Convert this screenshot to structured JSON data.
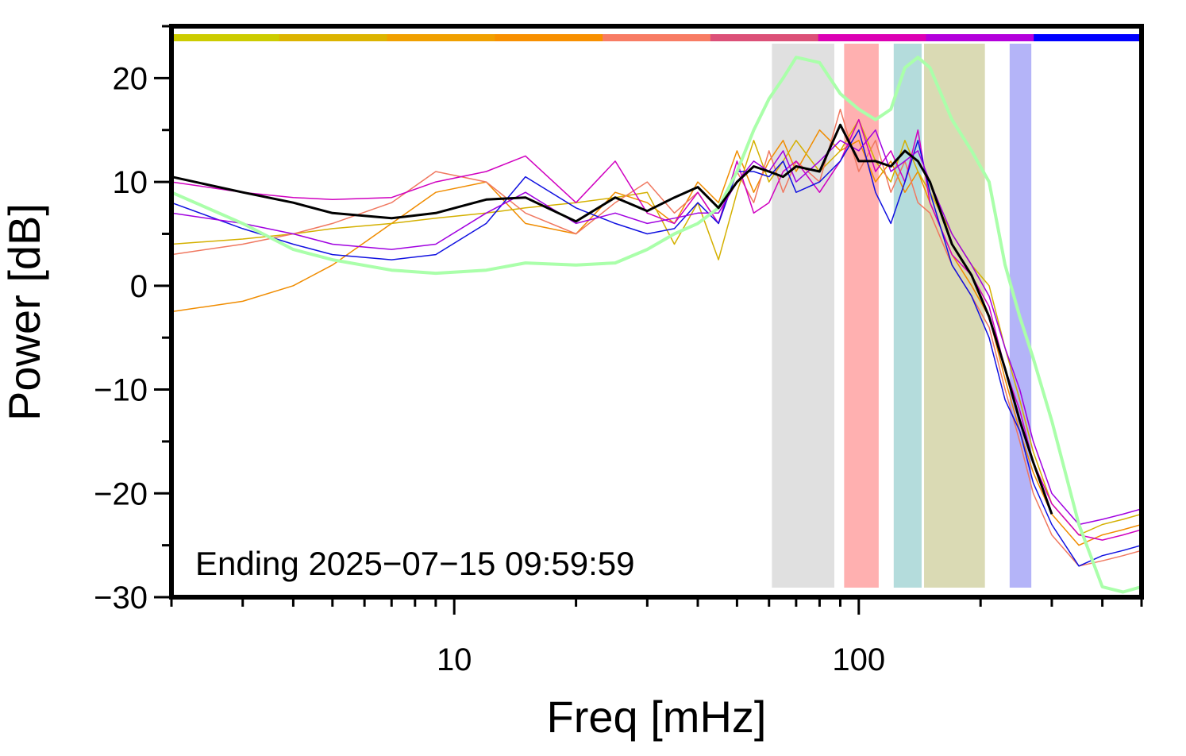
{
  "chart_data": {
    "type": "line",
    "xlabel": "Freq [mHz]",
    "ylabel": "Power [dB]",
    "annotation": "Ending 2025−07−15 09:59:59",
    "xscale": "log",
    "xlim": [
      2,
      500
    ],
    "ylim": [
      -30,
      25
    ],
    "xticks": [
      10,
      100
    ],
    "xminor": [
      2,
      3,
      4,
      5,
      6,
      7,
      8,
      9,
      20,
      30,
      40,
      50,
      60,
      70,
      80,
      90,
      200,
      300,
      400,
      500
    ],
    "yticks": [
      {
        "value": -30,
        "label": "−30"
      },
      {
        "value": -20,
        "label": "−20"
      },
      {
        "value": -10,
        "label": "−10"
      },
      0,
      10,
      20
    ],
    "yminor": [
      -25,
      -15,
      -5,
      5,
      15,
      25
    ],
    "colorbar": [
      "#cccc00",
      "#dcb400",
      "#f0a000",
      "#f89000",
      "#f87c64",
      "#dc5078",
      "#dc00b4",
      "#b400dc",
      "#0000ff"
    ],
    "bands": [
      {
        "xmin": 61,
        "xmax": 87,
        "color": "#e0e0e0"
      },
      {
        "xmin": 92,
        "xmax": 112,
        "color": "#ffb0b0"
      },
      {
        "xmin": 122,
        "xmax": 143,
        "color": "#b4dcdc"
      },
      {
        "xmin": 145,
        "xmax": 205,
        "color": "#dadab4"
      },
      {
        "xmin": 236,
        "xmax": 267,
        "color": "#b4b4f8"
      }
    ],
    "x": [
      2,
      3,
      4,
      5,
      7,
      9,
      12,
      15,
      20,
      25,
      30,
      35,
      40,
      45,
      50,
      55,
      60,
      65,
      70,
      80,
      90,
      100,
      110,
      120,
      130,
      140,
      150,
      170,
      190,
      210,
      230,
      250,
      270,
      300,
      350,
      400,
      450,
      500
    ],
    "series": [
      {
        "color": "#f08c00",
        "width": 1.5,
        "values": [
          -2.5,
          -1.5,
          0,
          2,
          6,
          9,
          10,
          6,
          5,
          9,
          8,
          6,
          10,
          8,
          13,
          9,
          12,
          14,
          11,
          15,
          13,
          14,
          10,
          12,
          9,
          11,
          8,
          3,
          0,
          -3,
          -9,
          -14,
          -18,
          -22,
          -25,
          -24,
          -23.5,
          -23
        ]
      },
      {
        "color": "#d4b000",
        "width": 1.5,
        "values": [
          4,
          4.5,
          5,
          5.5,
          6,
          6.5,
          7,
          7.5,
          8,
          8.5,
          9,
          4,
          8,
          2.5,
          9,
          14,
          10,
          12,
          14,
          11,
          13,
          16,
          12,
          10,
          14,
          11,
          9,
          5,
          2,
          0,
          -6,
          -11,
          -16,
          -21,
          -24,
          -23,
          -22.5,
          -22
        ]
      },
      {
        "color": "#f07860",
        "width": 1.5,
        "values": [
          3,
          4,
          5,
          6,
          8,
          11,
          10,
          7,
          5,
          8,
          10,
          7,
          9,
          6,
          11,
          8,
          13,
          9,
          12,
          10,
          17,
          11,
          14,
          9,
          12,
          8,
          7,
          2,
          -1,
          -4,
          -10,
          -15,
          -20,
          -24,
          -27,
          -26.5,
          -26,
          -25.5
        ]
      },
      {
        "color": "#d000c0",
        "width": 1.5,
        "values": [
          10,
          9,
          8.5,
          8.3,
          8.5,
          10,
          11,
          12.5,
          8,
          12,
          7,
          6,
          9,
          6,
          12,
          7,
          8,
          11,
          12,
          9,
          12,
          16,
          11,
          13,
          10,
          15,
          8,
          3,
          1,
          -2,
          -8,
          -12,
          -17,
          -21,
          -24,
          -24.5,
          -24,
          -23.5
        ]
      },
      {
        "color": "#1010e0",
        "width": 1.5,
        "values": [
          8,
          5.5,
          4,
          3,
          2.5,
          3,
          6,
          10.5,
          7.5,
          6,
          5,
          5.5,
          8,
          6,
          11,
          11,
          10.5,
          12,
          9,
          10,
          12,
          15,
          9,
          6,
          10,
          14,
          9,
          2,
          -1,
          -5,
          -11,
          -14,
          -19,
          -23,
          -27,
          -26,
          -25.5,
          -25
        ]
      },
      {
        "color": "#a000e0",
        "width": 1.5,
        "values": [
          7,
          6,
          5,
          4,
          3.5,
          4,
          7,
          9,
          6,
          7,
          6,
          6.5,
          7,
          7,
          10,
          12,
          11,
          13,
          10,
          12,
          14,
          13,
          15,
          11,
          12,
          13,
          10,
          5,
          2,
          -1,
          -6,
          -10,
          -15,
          -20,
          -23,
          -22.5,
          -22,
          -21.5
        ]
      },
      {
        "color": "#aaffaa",
        "width": 4,
        "values": [
          9,
          6,
          3.5,
          2.5,
          1.5,
          1.2,
          1.5,
          2.2,
          2,
          2.2,
          3.5,
          5,
          6,
          7.5,
          11,
          15,
          18,
          20,
          22,
          21.5,
          18.5,
          17,
          16,
          17,
          21,
          22,
          21,
          16,
          13,
          10,
          2,
          -3,
          -7,
          -13,
          -23,
          -29,
          -29.5,
          -29
        ]
      },
      {
        "color": "#000000",
        "width": 3,
        "values": [
          10.5,
          9,
          8,
          7,
          6.5,
          7,
          8.3,
          8.5,
          6.2,
          8.5,
          7.2,
          8.5,
          9.5,
          7.5,
          10,
          11.5,
          11,
          10.5,
          11.5,
          11,
          15.5,
          12,
          12,
          11.5,
          13,
          12,
          10,
          4,
          1,
          -3,
          -8,
          -13,
          -17,
          -22,
          null,
          null,
          null,
          null
        ]
      }
    ]
  }
}
